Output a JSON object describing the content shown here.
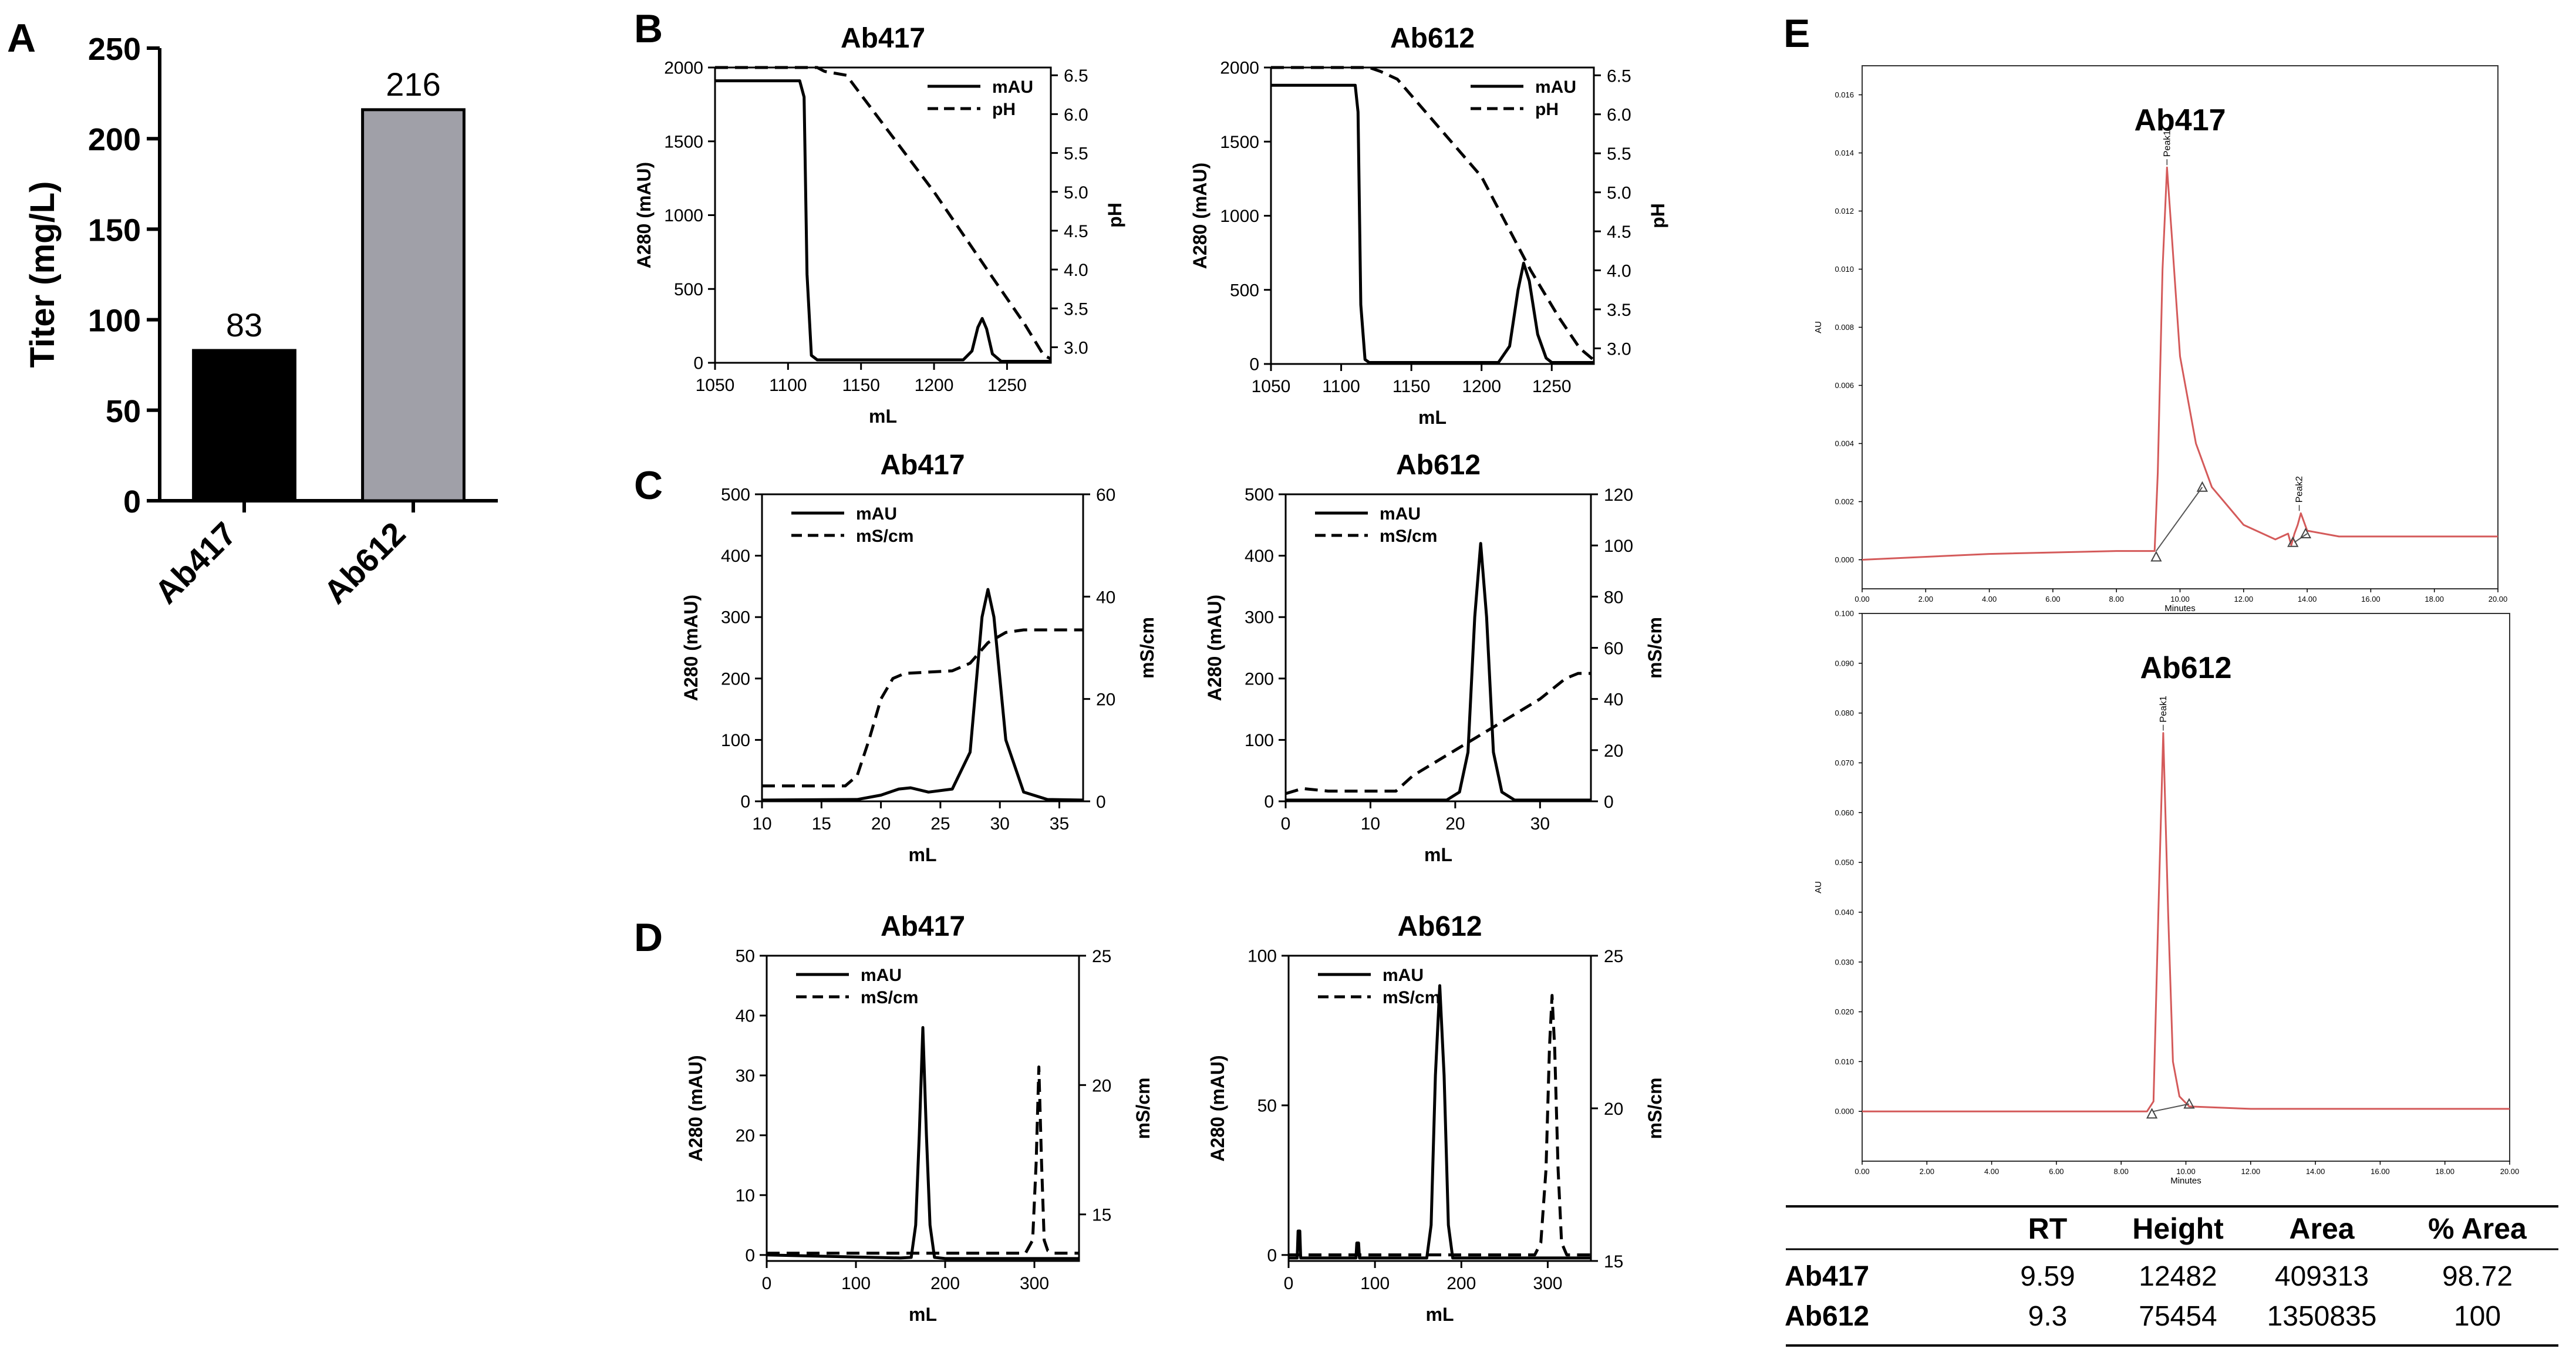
{
  "chart_data": [
    {
      "id": "A",
      "panel_label": "A",
      "type": "bar",
      "title": "",
      "xlabel": "",
      "ylabel": "Titer (mg/L)",
      "categories": [
        "Ab417",
        "Ab612"
      ],
      "values": [
        83,
        216
      ],
      "value_labels": [
        "83",
        "216"
      ],
      "bar_colors": [
        "#000000",
        "#a0a0a8"
      ],
      "ylim": [
        0,
        250
      ],
      "yticks": [
        0,
        50,
        100,
        150,
        200,
        250
      ],
      "ytick_labels": [
        "0",
        "50",
        "100",
        "150",
        "200",
        "250"
      ]
    },
    {
      "id": "B1",
      "panel_label": "B",
      "type": "line",
      "title": "Ab417",
      "xlabel": "mL",
      "ylabel": "A280 (mAU)",
      "y2label": "pH",
      "xlim": [
        1050,
        1280
      ],
      "ylim": [
        0,
        2000
      ],
      "y2lim": [
        2.8,
        6.6
      ],
      "xticks": [
        1050,
        1100,
        1150,
        1200,
        1250
      ],
      "xtick_labels": [
        "1050",
        "1100",
        "1150",
        "1200",
        "1250"
      ],
      "yticks": [
        0,
        500,
        1000,
        1500,
        2000
      ],
      "ytick_labels": [
        "0",
        "500",
        "1000",
        "1500",
        "2000"
      ],
      "y2ticks": [
        3.0,
        3.5,
        4.0,
        4.5,
        5.0,
        5.5,
        6.0,
        6.5
      ],
      "y2tick_labels": [
        "3.0",
        "3.5",
        "4.0",
        "4.5",
        "5.0",
        "5.5",
        "6.0",
        "6.5"
      ],
      "legend": [
        "mAU",
        "pH"
      ],
      "series": [
        {
          "name": "mAU",
          "axis": "left",
          "dash": "solid",
          "x": [
            1050,
            1108,
            1111,
            1113,
            1116,
            1120,
            1220,
            1226,
            1230,
            1233,
            1236,
            1240,
            1246,
            1280
          ],
          "y": [
            1910,
            1910,
            1800,
            600,
            50,
            20,
            20,
            80,
            240,
            300,
            230,
            60,
            10,
            10
          ]
        },
        {
          "name": "pH",
          "axis": "right",
          "dash": "dashed",
          "x": [
            1050,
            1120,
            1125,
            1140,
            1200,
            1240,
            1262,
            1275,
            1280
          ],
          "y": [
            6.6,
            6.6,
            6.55,
            6.5,
            5.0,
            3.9,
            3.3,
            2.9,
            2.85
          ]
        }
      ]
    },
    {
      "id": "B2",
      "panel_label": "",
      "type": "line",
      "title": "Ab612",
      "xlabel": "mL",
      "ylabel": "A280 (mAU)",
      "y2label": "pH",
      "xlim": [
        1050,
        1280
      ],
      "ylim": [
        0,
        2000
      ],
      "y2lim": [
        2.8,
        6.6
      ],
      "xticks": [
        1050,
        1100,
        1150,
        1200,
        1250
      ],
      "xtick_labels": [
        "1050",
        "1100",
        "1150",
        "1200",
        "1250"
      ],
      "yticks": [
        0,
        500,
        1000,
        1500,
        2000
      ],
      "ytick_labels": [
        "0",
        "500",
        "1000",
        "1500",
        "2000"
      ],
      "y2ticks": [
        3.0,
        3.5,
        4.0,
        4.5,
        5.0,
        5.5,
        6.0,
        6.5
      ],
      "y2tick_labels": [
        "3.0",
        "3.5",
        "4.0",
        "4.5",
        "5.0",
        "5.5",
        "6.0",
        "6.5"
      ],
      "legend": [
        "mAU",
        "pH"
      ],
      "series": [
        {
          "name": "mAU",
          "axis": "left",
          "dash": "solid",
          "x": [
            1050,
            1110,
            1112,
            1114,
            1117,
            1120,
            1212,
            1220,
            1226,
            1230,
            1234,
            1240,
            1246,
            1250,
            1280
          ],
          "y": [
            1880,
            1880,
            1700,
            400,
            30,
            10,
            10,
            120,
            500,
            680,
            560,
            200,
            40,
            10,
            10
          ]
        },
        {
          "name": "pH",
          "axis": "right",
          "dash": "dashed",
          "x": [
            1050,
            1120,
            1128,
            1140,
            1200,
            1235,
            1255,
            1270,
            1280
          ],
          "y": [
            6.6,
            6.6,
            6.55,
            6.45,
            5.2,
            4.0,
            3.4,
            3.0,
            2.85
          ]
        }
      ]
    },
    {
      "id": "C1",
      "panel_label": "C",
      "type": "line",
      "title": "Ab417",
      "xlabel": "mL",
      "ylabel": "A280 (mAU)",
      "y2label": "mS/cm",
      "xlim": [
        10,
        37
      ],
      "ylim": [
        0,
        500
      ],
      "y2lim": [
        0,
        60
      ],
      "xticks": [
        10,
        15,
        20,
        25,
        30,
        35
      ],
      "xtick_labels": [
        "10",
        "15",
        "20",
        "25",
        "30",
        "35"
      ],
      "yticks": [
        0,
        100,
        200,
        300,
        400,
        500
      ],
      "ytick_labels": [
        "0",
        "100",
        "200",
        "300",
        "400",
        "500"
      ],
      "y2ticks": [
        0,
        20,
        40,
        60
      ],
      "y2tick_labels": [
        "0",
        "20",
        "40",
        "60"
      ],
      "legend": [
        "mAU",
        "mS/cm"
      ],
      "series": [
        {
          "name": "mAU",
          "axis": "left",
          "dash": "solid",
          "x": [
            10,
            18,
            20,
            21.5,
            22.5,
            24,
            26,
            27.5,
            28.5,
            29,
            29.5,
            30.5,
            32,
            34,
            37
          ],
          "y": [
            2,
            3,
            10,
            20,
            22,
            15,
            20,
            80,
            300,
            345,
            300,
            100,
            15,
            3,
            2
          ]
        },
        {
          "name": "mS/cm",
          "axis": "right",
          "dash": "dashed",
          "x": [
            10,
            17,
            18,
            19,
            20,
            21,
            22,
            26,
            27.5,
            29,
            30.5,
            32,
            37
          ],
          "y": [
            3,
            3,
            5,
            12,
            20,
            24,
            25,
            25.5,
            27,
            31,
            33,
            33.5,
            33.5
          ]
        }
      ]
    },
    {
      "id": "C2",
      "panel_label": "",
      "type": "line",
      "title": "Ab612",
      "xlabel": "mL",
      "ylabel": "A280 (mAU)",
      "y2label": "mS/cm",
      "xlim": [
        0,
        36
      ],
      "ylim": [
        0,
        500
      ],
      "y2lim": [
        0,
        120
      ],
      "xticks": [
        0,
        10,
        20,
        30
      ],
      "xtick_labels": [
        "0",
        "10",
        "20",
        "30"
      ],
      "yticks": [
        0,
        100,
        200,
        300,
        400,
        500
      ],
      "ytick_labels": [
        "0",
        "100",
        "200",
        "300",
        "400",
        "500"
      ],
      "y2ticks": [
        0,
        20,
        40,
        60,
        80,
        100,
        120
      ],
      "y2tick_labels": [
        "0",
        "20",
        "40",
        "60",
        "80",
        "100",
        "120"
      ],
      "legend": [
        "mAU",
        "mS/cm"
      ],
      "series": [
        {
          "name": "mAU",
          "axis": "left",
          "dash": "solid",
          "x": [
            0,
            19,
            20.5,
            21.5,
            22.3,
            23,
            23.7,
            24.5,
            25.5,
            27,
            36
          ],
          "y": [
            2,
            2,
            15,
            80,
            300,
            420,
            300,
            80,
            15,
            2,
            2
          ]
        },
        {
          "name": "mS/cm",
          "axis": "right",
          "dash": "dashed",
          "x": [
            0,
            2,
            5,
            13,
            15,
            20,
            25,
            30,
            33,
            34.5,
            36
          ],
          "y": [
            3,
            5,
            4,
            4,
            10,
            20,
            30,
            40,
            48,
            50,
            50
          ]
        }
      ]
    },
    {
      "id": "D1",
      "panel_label": "D",
      "type": "line",
      "title": "Ab417",
      "xlabel": "mL",
      "ylabel": "A280 (mAU)",
      "y2label": "mS/cm",
      "xlim": [
        0,
        350
      ],
      "ylim": [
        -1,
        50
      ],
      "y2lim": [
        13.2,
        25
      ],
      "xticks": [
        0,
        100,
        200,
        300
      ],
      "xtick_labels": [
        "0",
        "100",
        "200",
        "300"
      ],
      "yticks": [
        0,
        10,
        20,
        30,
        40,
        50
      ],
      "ytick_labels": [
        "0",
        "10",
        "20",
        "30",
        "40",
        "50"
      ],
      "y2ticks": [
        15,
        20,
        25
      ],
      "y2tick_labels": [
        "15",
        "20",
        "25"
      ],
      "legend": [
        "mAU",
        "mS/cm"
      ],
      "series": [
        {
          "name": "mAU",
          "axis": "left",
          "dash": "solid",
          "x": [
            0,
            150,
            162,
            167,
            171,
            175,
            179,
            183,
            188,
            200,
            350
          ],
          "y": [
            0,
            -0.5,
            -0.4,
            5,
            20,
            38,
            20,
            5,
            -0.4,
            -0.6,
            -0.6
          ]
        },
        {
          "name": "mS/cm",
          "axis": "right",
          "dash": "dashed",
          "x": [
            0,
            290,
            298,
            302,
            305,
            308,
            311,
            315,
            322,
            350
          ],
          "y": [
            13.5,
            13.5,
            14,
            17,
            20.7,
            17,
            14,
            13.6,
            13.5,
            13.5
          ]
        }
      ]
    },
    {
      "id": "D2",
      "panel_label": "",
      "type": "line",
      "title": "Ab612",
      "xlabel": "mL",
      "ylabel": "A280 (mAU)",
      "y2label": "mS/cm",
      "xlim": [
        0,
        350
      ],
      "ylim": [
        -2,
        100
      ],
      "y2lim": [
        15,
        25
      ],
      "xticks": [
        0,
        100,
        200,
        300
      ],
      "xtick_labels": [
        "0",
        "100",
        "200",
        "300"
      ],
      "yticks": [
        0,
        50,
        100
      ],
      "ytick_labels": [
        "0",
        "50",
        "100"
      ],
      "y2ticks": [
        15,
        20,
        25
      ],
      "y2tick_labels": [
        "15",
        "20",
        "25"
      ],
      "legend": [
        "mAU",
        "mS/cm"
      ],
      "series": [
        {
          "name": "mAU",
          "axis": "left",
          "dash": "solid",
          "x": [
            0,
            10,
            11,
            13,
            14,
            78,
            79,
            81,
            82,
            160,
            165,
            170,
            175,
            180,
            185,
            190,
            350
          ],
          "y": [
            -1,
            -1,
            8,
            8,
            -1,
            -1,
            4,
            4,
            -1,
            -1,
            10,
            60,
            90,
            60,
            10,
            -1,
            -1
          ]
        },
        {
          "name": "mS/cm",
          "axis": "right",
          "dash": "dashed",
          "x": [
            0,
            285,
            292,
            298,
            302,
            305,
            308,
            312,
            316,
            322,
            350
          ],
          "y": [
            15.2,
            15.2,
            15.6,
            18,
            22,
            23.7,
            22,
            18,
            15.6,
            15.2,
            15.2
          ]
        }
      ]
    },
    {
      "id": "E1",
      "panel_label": "E",
      "type": "line",
      "title": "Ab417",
      "xlabel": "Minutes",
      "ylabel": "AU",
      "xlim": [
        0,
        20
      ],
      "ylim": [
        -0.001,
        0.017
      ],
      "xticks": [
        0,
        2,
        4,
        6,
        8,
        10,
        12,
        14,
        16,
        18,
        20
      ],
      "xtick_labels": [
        "0.00",
        "2.00",
        "4.00",
        "6.00",
        "8.00",
        "10.00",
        "12.00",
        "14.00",
        "16.00",
        "18.00",
        "20.00"
      ],
      "yticks": [
        0,
        0.002,
        0.004,
        0.006,
        0.008,
        0.01,
        0.012,
        0.014,
        0.016
      ],
      "ytick_labels": [
        "0.000",
        "0.002",
        "0.004",
        "0.006",
        "0.008",
        "0.010",
        "0.012",
        "0.014",
        "0.016"
      ],
      "color": "#d45a5a",
      "series": [
        {
          "name": "trace",
          "axis": "left",
          "dash": "solid",
          "x": [
            0,
            4,
            8,
            9.2,
            9.3,
            9.45,
            9.59,
            9.75,
            10,
            10.5,
            11,
            12,
            13,
            13.4,
            13.5,
            13.6,
            13.7,
            13.8,
            14,
            15,
            17,
            20
          ],
          "y": [
            0,
            0.0002,
            0.0003,
            0.0003,
            0.003,
            0.01,
            0.0135,
            0.011,
            0.007,
            0.004,
            0.0025,
            0.0012,
            0.0007,
            0.0009,
            0.0005,
            0.0009,
            0.0012,
            0.0016,
            0.001,
            0.0008,
            0.0008,
            0.0008
          ]
        },
        {
          "name": "baseline",
          "axis": "left",
          "dash": "solid",
          "color": "#555555",
          "x": [
            9.25,
            10.7
          ],
          "y": [
            0.0003,
            0.0025
          ]
        },
        {
          "name": "baseline2",
          "axis": "left",
          "dash": "solid",
          "color": "#555555",
          "x": [
            13.6,
            14.0
          ],
          "y": [
            0.0006,
            0.0009
          ]
        }
      ],
      "markers": [
        {
          "x": 9.25,
          "y": 0.0001
        },
        {
          "x": 10.7,
          "y": 0.0025
        },
        {
          "x": 13.55,
          "y": 0.0006
        },
        {
          "x": 13.95,
          "y": 0.0009
        }
      ],
      "peaks": [
        {
          "label": "Peak1",
          "x": 9.59,
          "y": 0.0135
        },
        {
          "label": "Peak2",
          "x": 13.75,
          "y": 0.0016
        }
      ]
    },
    {
      "id": "E2",
      "panel_label": "",
      "type": "line",
      "title": "Ab612",
      "xlabel": "Minutes",
      "ylabel": "AU",
      "xlim": [
        0,
        20
      ],
      "ylim": [
        -0.01,
        0.1
      ],
      "xticks": [
        0,
        2,
        4,
        6,
        8,
        10,
        12,
        14,
        16,
        18,
        20
      ],
      "xtick_labels": [
        "0.00",
        "2.00",
        "4.00",
        "6.00",
        "8.00",
        "10.00",
        "12.00",
        "14.00",
        "16.00",
        "18.00",
        "20.00"
      ],
      "yticks": [
        0,
        0.01,
        0.02,
        0.03,
        0.04,
        0.05,
        0.06,
        0.07,
        0.08,
        0.09,
        0.1
      ],
      "ytick_labels": [
        "0.000",
        "0.010",
        "0.020",
        "0.030",
        "0.040",
        "0.050",
        "0.060",
        "0.070",
        "0.080",
        "0.090",
        "0.100"
      ],
      "color": "#d45a5a",
      "series": [
        {
          "name": "trace",
          "axis": "left",
          "dash": "solid",
          "x": [
            0,
            8.8,
            9.0,
            9.15,
            9.3,
            9.45,
            9.6,
            9.8,
            10.1,
            12,
            20
          ],
          "y": [
            0,
            0,
            0.002,
            0.04,
            0.076,
            0.04,
            0.01,
            0.003,
            0.001,
            0.0005,
            0.0005
          ]
        },
        {
          "name": "baseline",
          "axis": "left",
          "dash": "solid",
          "color": "#555555",
          "x": [
            9.0,
            10.1
          ],
          "y": [
            0.0,
            0.0015
          ]
        }
      ],
      "markers": [
        {
          "x": 8.95,
          "y": -0.0005
        },
        {
          "x": 10.1,
          "y": 0.0015
        }
      ],
      "peaks": [
        {
          "label": "Peak1",
          "x": 9.3,
          "y": 0.076
        }
      ]
    }
  ],
  "results_table": {
    "headers": [
      "",
      "RT",
      "Height",
      "Area",
      "% Area"
    ],
    "rows": [
      [
        "Ab417",
        "9.59",
        "12482",
        "409313",
        "98.72"
      ],
      [
        "Ab612",
        "9.3",
        "75454",
        "1350835",
        "100"
      ]
    ]
  }
}
